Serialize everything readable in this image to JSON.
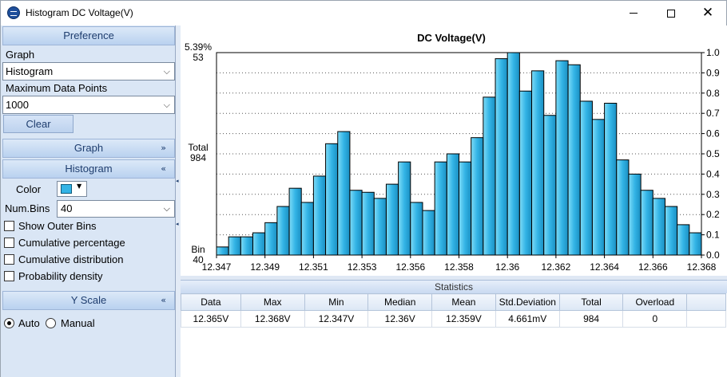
{
  "window": {
    "title": "Histogram DC Voltage(V)",
    "icon": "app-logo-icon"
  },
  "preference": {
    "header": "Preference",
    "graph_label": "Graph",
    "graph_value": "Histogram",
    "max_points_label": "Maximum Data Points",
    "max_points_value": "1000",
    "clear_label": "Clear"
  },
  "graph_section": {
    "header": "Graph",
    "chevron": "double-chevron-down-icon"
  },
  "histogram_section": {
    "header": "Histogram",
    "chevron": "double-chevron-up-icon",
    "color_label": "Color",
    "color_value": "#33b4e6",
    "numbins_label": "Num.Bins",
    "numbins_value": "40",
    "checkboxes": [
      {
        "label": "Show Outer Bins",
        "checked": false
      },
      {
        "label": "Cumulative percentage",
        "checked": false
      },
      {
        "label": "Cumulative distribution",
        "checked": false
      },
      {
        "label": "Probability density",
        "checked": false
      }
    ]
  },
  "yscale_section": {
    "header": "Y Scale",
    "chevron": "double-chevron-up-icon",
    "options": [
      {
        "label": "Auto",
        "selected": true
      },
      {
        "label": "Manual",
        "selected": false
      }
    ]
  },
  "statistics": {
    "header": "Statistics",
    "columns": [
      "Data",
      "Max",
      "Min",
      "Median",
      "Mean",
      "Std.Deviation",
      "Total",
      "Overload"
    ],
    "rows": [
      [
        "12.365V",
        "12.368V",
        "12.347V",
        "12.36V",
        "12.359V",
        "4.661mV",
        "984",
        "0"
      ]
    ]
  },
  "chart_data": {
    "type": "bar",
    "title": "DC Voltage(V)",
    "bar_color": "#33b4e6",
    "left_labels": {
      "top_percent": "5.39%",
      "top_count": "53",
      "mid_label": "Total",
      "mid_value": "984",
      "bottom_label": "Bin",
      "bottom_value": "40"
    },
    "x_ticks": [
      "12.347",
      "12.349",
      "12.351",
      "12.353",
      "12.356",
      "12.358",
      "12.36",
      "12.362",
      "12.364",
      "12.366",
      "12.368"
    ],
    "y_right_ticks": [
      "0.0",
      "0.1",
      "0.2",
      "0.3",
      "0.4",
      "0.5",
      "0.6",
      "0.7",
      "0.8",
      "0.9",
      "1.0"
    ],
    "ylim": [
      0,
      1.0
    ],
    "values": [
      0.04,
      0.09,
      0.09,
      0.11,
      0.16,
      0.24,
      0.33,
      0.26,
      0.39,
      0.55,
      0.61,
      0.32,
      0.31,
      0.28,
      0.35,
      0.46,
      0.26,
      0.22,
      0.46,
      0.5,
      0.46,
      0.58,
      0.78,
      0.97,
      1.0,
      0.81,
      0.91,
      0.69,
      0.96,
      0.94,
      0.76,
      0.67,
      0.75,
      0.47,
      0.4,
      0.32,
      0.28,
      0.24,
      0.15,
      0.11
    ],
    "grid": true
  }
}
